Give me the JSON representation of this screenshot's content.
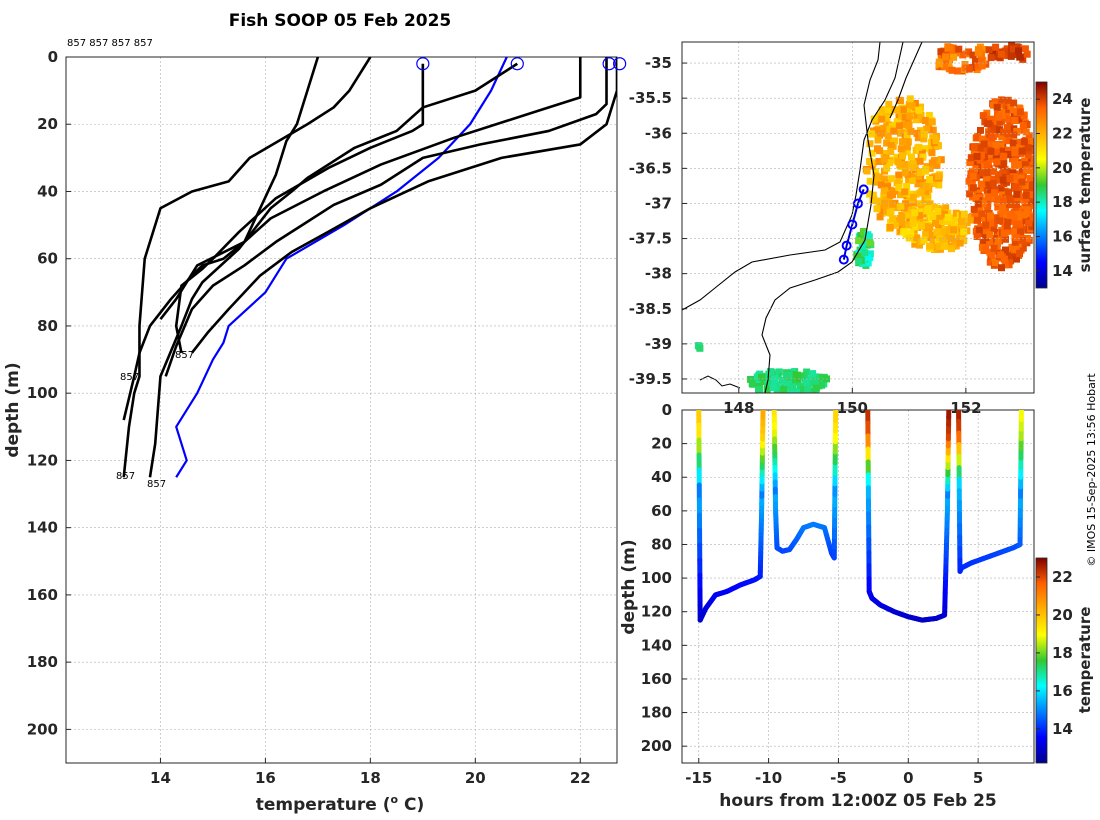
{
  "chart_data": [
    {
      "type": "line",
      "title": "Fish SOOP 05 Feb 2025",
      "xlabel": "temperature (o C)",
      "ylabel": "depth (m)",
      "xlim": [
        12.2,
        22.7
      ],
      "ylim": [
        210,
        0
      ],
      "xticks": [
        "14",
        "16",
        "18",
        "20",
        "22"
      ],
      "yticks": [
        "0",
        "20",
        "40",
        "60",
        "80",
        "100",
        "120",
        "140",
        "160",
        "180",
        "200"
      ],
      "top_labels": "857 857 857 857",
      "profile_labels": [
        "857",
        "857",
        "857",
        "857"
      ],
      "series": [
        {
          "name": "highlight",
          "color": "#0000ff",
          "x": [
            20.6,
            20.3,
            19.9,
            19.3,
            18.5,
            17.5,
            16.4,
            16.0,
            15.3,
            15.2,
            15.0,
            14.7,
            14.3,
            14.5,
            14.3
          ],
          "y": [
            0,
            10,
            20,
            30,
            40,
            50,
            60,
            70,
            80,
            85,
            90,
            100,
            110,
            120,
            125
          ]
        },
        {
          "name": "p1",
          "color": "#000000",
          "x": [
            18.0,
            17.8,
            17.6,
            17.3,
            16.8,
            15.7,
            15.3,
            14.6,
            14.0,
            13.7,
            13.6,
            13.6,
            13.5,
            13.4,
            13.3
          ],
          "y": [
            0,
            5,
            10,
            15,
            20,
            30,
            37,
            40,
            45,
            60,
            80,
            95,
            100,
            110,
            125
          ]
        },
        {
          "name": "p2",
          "color": "#000000",
          "x": [
            17.0,
            16.8,
            16.6,
            16.4,
            16.2,
            15.9,
            15.6,
            15.2,
            14.8,
            14.6,
            14.2,
            13.8,
            13.6,
            13.5,
            13.3
          ],
          "y": [
            0,
            10,
            20,
            25,
            35,
            45,
            55,
            60,
            62,
            65,
            72,
            80,
            88,
            95,
            108
          ]
        },
        {
          "name": "p3",
          "color": "#000000",
          "x": [
            19.0,
            19.0,
            19.0,
            18.8,
            18.0,
            17.2,
            16.2,
            15.5,
            15.0,
            14.8,
            14.4,
            14.3,
            14.4
          ],
          "y": [
            2,
            12,
            20,
            22,
            27,
            33,
            42,
            52,
            60,
            63,
            68,
            80,
            88
          ]
        },
        {
          "name": "p4",
          "color": "#000000",
          "x": [
            20.8,
            20.0,
            19.0,
            18.5,
            17.7,
            17.2,
            16.8,
            16.5,
            16.1,
            15.5,
            14.8,
            14.6,
            14.4,
            14.0,
            13.9,
            13.8
          ],
          "y": [
            2,
            10,
            15,
            22,
            27,
            32,
            36,
            40,
            45,
            57,
            67,
            72,
            80,
            95,
            115,
            125
          ]
        },
        {
          "name": "p5",
          "color": "#000000",
          "x": [
            22.0,
            22.0,
            22.0,
            21.2,
            19.6,
            18.2,
            17.1,
            16.1,
            15.6,
            14.7,
            14.3,
            14.0
          ],
          "y": [
            0,
            10,
            12,
            16,
            24,
            32,
            40,
            48,
            55,
            62,
            72,
            78
          ]
        },
        {
          "name": "p6",
          "color": "#000000",
          "x": [
            22.5,
            22.5,
            22.5,
            22.3,
            21.4,
            20.1,
            19.0,
            18.2,
            17.3,
            16.7,
            16.2,
            15.6,
            15.0,
            14.6,
            14.3,
            14.1
          ],
          "y": [
            0,
            10,
            14,
            17,
            22,
            26,
            30,
            38,
            44,
            50,
            55,
            62,
            68,
            75,
            86,
            95
          ]
        },
        {
          "name": "p7",
          "color": "#000000",
          "x": [
            22.7,
            22.7,
            22.6,
            22.5,
            22.0,
            20.5,
            19.1,
            18.0,
            17.2,
            16.5,
            15.9,
            15.3,
            14.9,
            14.6
          ],
          "y": [
            0,
            10,
            15,
            20,
            26,
            30,
            37,
            45,
            52,
            58,
            65,
            75,
            82,
            88
          ]
        }
      ]
    },
    {
      "type": "heatmap",
      "colorbar_label": "surface temperature",
      "colorbar_ticks": [
        "14",
        "16",
        "18",
        "20",
        "22",
        "24"
      ],
      "clim": [
        13,
        25
      ],
      "yticks": [
        "-35",
        "-35.5",
        "-36",
        "-36.5",
        "-37",
        "-37.5",
        "-38",
        "-38.5",
        "-39",
        "-39.5"
      ],
      "xticks": [
        "148",
        "150",
        "152"
      ],
      "ylim": [
        -39.7,
        -34.7
      ],
      "xlim": [
        147.0,
        153.2
      ],
      "track_lat": [
        -36.8,
        -37.0,
        -37.3,
        -37.6,
        -37.8
      ],
      "track_lon": [
        150.2,
        150.1,
        150.0,
        149.9,
        149.85
      ]
    },
    {
      "type": "scatter",
      "xlabel": "hours from 12:00Z 05 Feb 25",
      "ylabel": "depth (m)",
      "colorbar_label": "temperature",
      "colorbar_ticks": [
        "14",
        "16",
        "18",
        "20",
        "22"
      ],
      "clim": [
        12.2,
        23
      ],
      "xlim": [
        -16.2,
        9.0
      ],
      "ylim": [
        210,
        0
      ],
      "xticks": [
        "-15",
        "-10",
        "-5",
        "0",
        "5"
      ],
      "yticks": [
        "0",
        "20",
        "40",
        "60",
        "80",
        "100",
        "120",
        "140",
        "160",
        "180",
        "200"
      ],
      "casts": [
        {
          "x": [
            -15.0,
            -14.9,
            -14.5,
            -13.8,
            -13.0,
            -12.0,
            -11.0,
            -10.6,
            -10.5,
            -10.4
          ],
          "y": [
            0,
            125,
            118,
            110,
            108,
            104,
            101,
            99,
            60,
            0
          ],
          "ts": 20.0,
          "te": 20.5
        },
        {
          "x": [
            -9.6,
            -9.5,
            -9.4,
            -9.0,
            -8.5,
            -8.0,
            -7.5,
            -6.8,
            -6.0,
            -5.5,
            -5.3,
            -5.2
          ],
          "y": [
            0,
            60,
            82,
            84,
            83,
            77,
            70,
            68,
            70,
            85,
            88,
            0
          ],
          "ts": 19.5,
          "te": 19.8
        },
        {
          "x": [
            -2.9,
            -2.8,
            -2.6,
            -2.0,
            -1.0,
            0.0,
            1.0,
            2.0,
            2.6,
            2.8,
            2.9
          ],
          "y": [
            0,
            108,
            112,
            116,
            120,
            123,
            125,
            124,
            122,
            60,
            0
          ],
          "ts": 22.5,
          "te": 22.8
        },
        {
          "x": [
            3.6,
            3.7,
            3.8,
            4.5,
            5.5,
            6.5,
            7.5,
            8.0,
            8.1
          ],
          "y": [
            0,
            96,
            94,
            91,
            88,
            85,
            82,
            80,
            0
          ],
          "ts": 22.7,
          "te": 19.0
        }
      ]
    }
  ],
  "credit": "© IMOS 15-Sep-2025 13:56 Hobart"
}
